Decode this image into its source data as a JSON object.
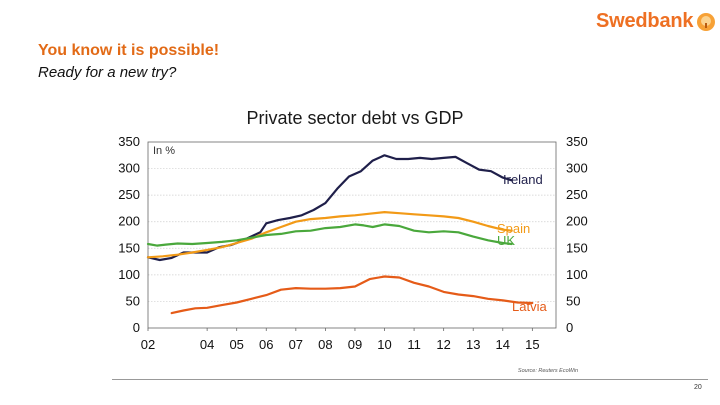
{
  "header": {
    "brand_name": "Swedbank",
    "title": "You know it is possible!",
    "subtitle": "Ready for a new try?"
  },
  "footer": {
    "page_number": "20"
  },
  "chart_data": {
    "type": "line",
    "title": "Private sector debt vs GDP",
    "unit_label": "In %",
    "source": "Source: Reuters EcoWin",
    "x_ticks": [
      "02",
      "04",
      "05",
      "06",
      "07",
      "08",
      "09",
      "10",
      "11",
      "12",
      "13",
      "14",
      "15"
    ],
    "x_tick_values": [
      2002,
      2004,
      2005,
      2006,
      2007,
      2008,
      2009,
      2010,
      2011,
      2012,
      2013,
      2014,
      2015
    ],
    "xlim": [
      2002,
      2015.8
    ],
    "ylim": [
      0,
      350
    ],
    "y_ticks": [
      0,
      50,
      100,
      150,
      200,
      250,
      300,
      350
    ],
    "gridlines": true,
    "series": [
      {
        "name": "Ireland",
        "color": "#1f1f4a",
        "x": [
          2002,
          2002.4,
          2002.8,
          2003.2,
          2003.6,
          2004,
          2004.4,
          2004.8,
          2005,
          2005.4,
          2005.8,
          2006,
          2006.4,
          2006.8,
          2007.2,
          2007.6,
          2008,
          2008.4,
          2008.8,
          2009.2,
          2009.6,
          2010,
          2010.4,
          2010.8,
          2011.2,
          2011.6,
          2012,
          2012.4,
          2012.8,
          2013.2,
          2013.6,
          2014,
          2014.3
        ],
        "y": [
          133,
          128,
          132,
          142,
          142,
          142,
          152,
          156,
          160,
          170,
          180,
          197,
          203,
          207,
          212,
          222,
          235,
          262,
          285,
          295,
          315,
          325,
          318,
          318,
          320,
          318,
          320,
          322,
          310,
          298,
          295,
          283,
          278
        ]
      },
      {
        "name": "Spain",
        "color": "#f29a17",
        "x": [
          2002,
          2002.5,
          2003,
          2003.5,
          2004,
          2004.5,
          2005,
          2005.5,
          2006,
          2006.5,
          2007,
          2007.5,
          2008,
          2008.5,
          2009,
          2009.5,
          2010,
          2010.5,
          2011,
          2011.5,
          2012,
          2012.5,
          2013,
          2013.5,
          2014,
          2014.3
        ],
        "y": [
          133,
          135,
          138,
          142,
          147,
          152,
          160,
          168,
          180,
          190,
          200,
          205,
          207,
          210,
          212,
          215,
          218,
          216,
          214,
          212,
          210,
          207,
          200,
          192,
          185,
          183
        ]
      },
      {
        "name": "UK",
        "color": "#4aa83c",
        "x": [
          2002,
          2002.3,
          2002.6,
          2003,
          2003.5,
          2004,
          2004.5,
          2005,
          2005.5,
          2006,
          2006.5,
          2007,
          2007.5,
          2008,
          2008.5,
          2009,
          2009.3,
          2009.6,
          2010,
          2010.5,
          2011,
          2011.5,
          2012,
          2012.5,
          2013,
          2013.5,
          2014,
          2014.3
        ],
        "y": [
          158,
          155,
          157,
          159,
          158,
          160,
          162,
          165,
          170,
          175,
          177,
          182,
          183,
          188,
          190,
          195,
          193,
          190,
          195,
          192,
          183,
          180,
          182,
          180,
          172,
          165,
          160,
          158
        ]
      },
      {
        "name": "Latvia",
        "color": "#e55b18",
        "x": [
          2002.8,
          2003.2,
          2003.6,
          2004,
          2004.5,
          2005,
          2005.5,
          2006,
          2006.5,
          2007,
          2007.5,
          2008,
          2008.5,
          2009,
          2009.5,
          2010,
          2010.5,
          2011,
          2011.5,
          2012,
          2012.5,
          2013,
          2013.5,
          2014,
          2014.5,
          2015
        ],
        "y": [
          28,
          33,
          37,
          38,
          43,
          48,
          55,
          62,
          72,
          75,
          74,
          74,
          75,
          78,
          92,
          97,
          95,
          85,
          78,
          68,
          63,
          60,
          55,
          52,
          48,
          47
        ]
      }
    ]
  }
}
